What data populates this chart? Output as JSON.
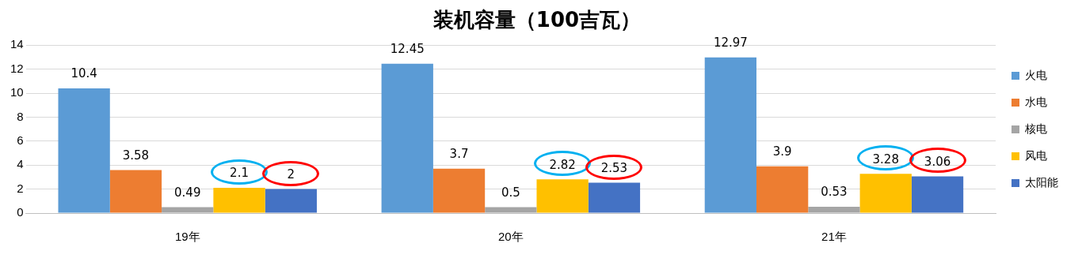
{
  "chart_data": {
    "type": "bar",
    "title": "装机容量（100吉瓦）",
    "categories": [
      "19年",
      "20年",
      "21年"
    ],
    "series": [
      {
        "name": "火电",
        "color": "#5b9bd5",
        "values": [
          10.4,
          12.45,
          12.97
        ]
      },
      {
        "name": "水电",
        "color": "#ed7d31",
        "values": [
          3.58,
          3.7,
          3.9
        ]
      },
      {
        "name": "核电",
        "color": "#a5a5a5",
        "values": [
          0.49,
          0.5,
          0.53
        ]
      },
      {
        "name": "风电",
        "color": "#ffc000",
        "values": [
          2.1,
          2.82,
          3.28
        ]
      },
      {
        "name": "太阳能",
        "color": "#4472c4",
        "values": [
          2,
          2.53,
          3.06
        ]
      }
    ],
    "ylim": [
      0,
      14
    ],
    "yticks": [
      0,
      2,
      4,
      6,
      8,
      10,
      12,
      14
    ],
    "grid": "y",
    "legend": "right",
    "data_labels": true
  }
}
